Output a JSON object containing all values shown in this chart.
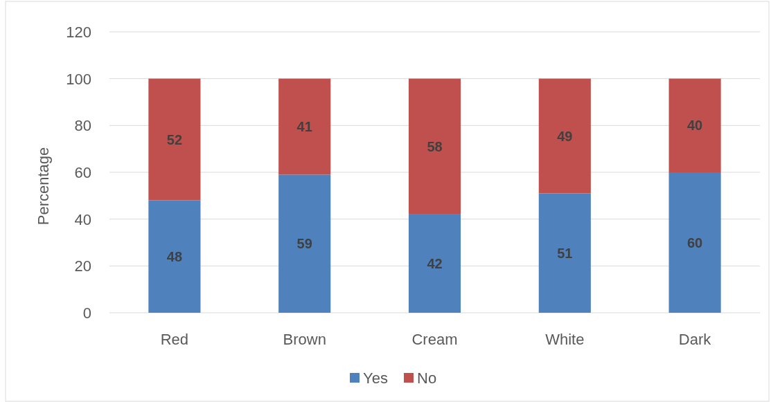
{
  "chart_data": {
    "type": "bar",
    "ylabel": "Percentage",
    "categories": [
      "Red",
      "Brown",
      "Cream",
      "White",
      "Dark"
    ],
    "series": [
      {
        "name": "Yes",
        "color": "#4f81bd",
        "values": [
          48,
          59,
          42,
          51,
          60
        ]
      },
      {
        "name": "No",
        "color": "#c0504d",
        "values": [
          52,
          41,
          58,
          49,
          40
        ]
      }
    ],
    "stacked": true,
    "ylim": [
      0,
      120
    ],
    "yticks": [
      0,
      20,
      40,
      60,
      80,
      100,
      120
    ],
    "grid": "y",
    "legend": "bottom",
    "data_labels": true
  }
}
